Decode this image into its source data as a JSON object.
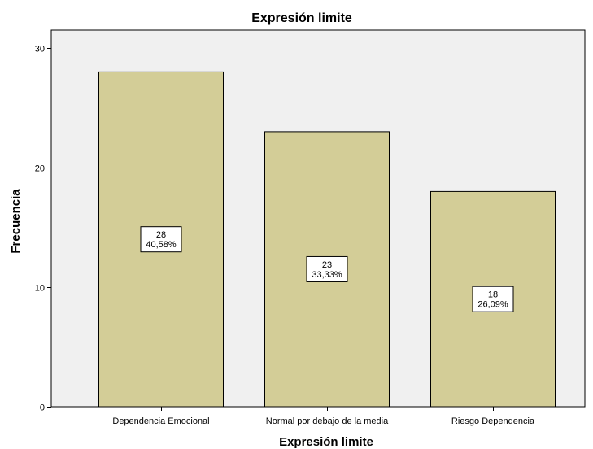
{
  "chart_data": {
    "type": "bar",
    "title": "Expresión limite",
    "xlabel": "Expresión limite",
    "ylabel": "Frecuencia",
    "categories": [
      "Dependencia Emocional",
      "Normal por debajo de la media",
      "Riesgo Dependencia"
    ],
    "values": [
      28,
      23,
      18
    ],
    "percent_labels": [
      "40,58%",
      "33,33%",
      "26,09%"
    ],
    "ylim": [
      0,
      30
    ],
    "yticks": [
      0,
      10,
      20,
      30
    ],
    "grid": false,
    "legend": "none",
    "colors": {
      "bar_fill": "#d3cd97",
      "bar_stroke": "#000000",
      "plot_background": "#f0f0f0",
      "label_box": "#ffffff"
    }
  }
}
